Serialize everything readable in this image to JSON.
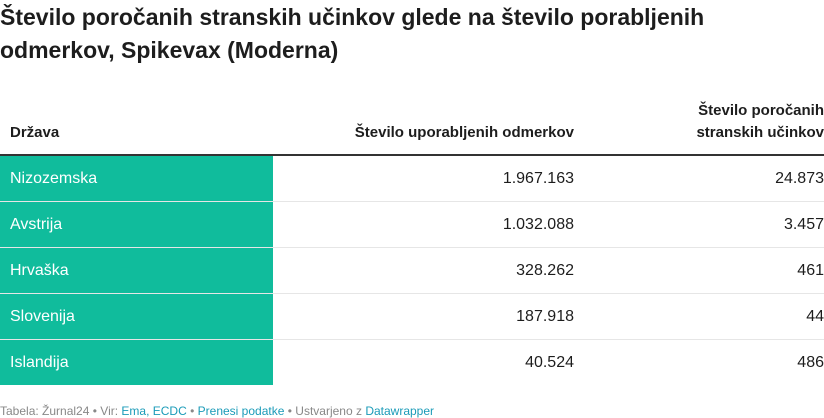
{
  "title": "Število poročanih stranskih učinkov glede na število porabljenih odmerkov, Spikevax (Moderna)",
  "chart_data": {
    "type": "table",
    "title": "Število poročanih stranskih učinkov glede na število porabljenih odmerkov, Spikevax (Moderna)",
    "columns": [
      "Država",
      "Število uporabljenih odmerkov",
      "Število poročanih stranskih učinkov"
    ],
    "rows": [
      [
        "Nizozemska",
        "1.967.163",
        "24.873"
      ],
      [
        "Avstrija",
        "1.032.088",
        "3.457"
      ],
      [
        "Hrvaška",
        "328.262",
        "461"
      ],
      [
        "Slovenija",
        "187.918",
        "44"
      ],
      [
        "Islandija",
        "40.524",
        "486"
      ]
    ],
    "highlight_color": "#10bc9c"
  },
  "footer": {
    "table_label": "Tabela: Žurnal24",
    "source_label": "Vir:",
    "source_link": "Ema, ECDC",
    "download_link": "Prenesi podatke",
    "made_with": "Ustvarjeno z",
    "tool_link": "Datawrapper",
    "separator": "•"
  }
}
